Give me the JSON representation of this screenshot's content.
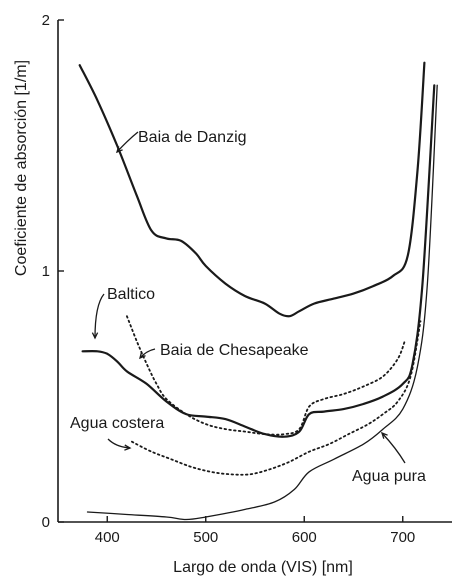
{
  "chart_data": {
    "type": "line",
    "xlabel": "Largo de onda (VIS) [nm]",
    "ylabel": "Coeficiente de absorción [1/m]",
    "xlim": [
      350,
      750
    ],
    "ylim": [
      0,
      2
    ],
    "x_ticks": [
      {
        "value": 400,
        "label": "400"
      },
      {
        "value": 500,
        "label": "500"
      },
      {
        "value": 600,
        "label": "600"
      },
      {
        "value": 700,
        "label": "700"
      }
    ],
    "y_ticks": [
      {
        "value": 0,
        "label": "0"
      },
      {
        "value": 1,
        "label": "1"
      },
      {
        "value": 2,
        "label": "2"
      }
    ],
    "grid": false,
    "series": [
      {
        "name": "Baia de Danzig",
        "style": "solid",
        "x": [
          372,
          390,
          410,
          430,
          445,
          460,
          475,
          490,
          500,
          520,
          540,
          560,
          575,
          585,
          595,
          610,
          630,
          650,
          670,
          690,
          705,
          715,
          722
        ],
        "y": [
          1.82,
          1.68,
          1.5,
          1.3,
          1.16,
          1.13,
          1.12,
          1.07,
          1.02,
          0.95,
          0.9,
          0.87,
          0.83,
          0.82,
          0.84,
          0.87,
          0.89,
          0.91,
          0.94,
          0.98,
          1.06,
          1.4,
          1.83
        ]
      },
      {
        "name": "Baltico",
        "style": "solid",
        "x": [
          375,
          390,
          400,
          410,
          420,
          440,
          460,
          480,
          500,
          520,
          540,
          560,
          580,
          595,
          605,
          620,
          640,
          660,
          680,
          700,
          710,
          720,
          732
        ],
        "y": [
          0.68,
          0.68,
          0.67,
          0.64,
          0.6,
          0.55,
          0.48,
          0.43,
          0.42,
          0.41,
          0.38,
          0.35,
          0.34,
          0.36,
          0.43,
          0.44,
          0.45,
          0.47,
          0.5,
          0.55,
          0.63,
          0.95,
          1.74
        ]
      },
      {
        "name": "Baia de Chesapeake",
        "style": "dotted",
        "x": [
          420,
          430,
          440,
          450,
          460,
          480,
          500,
          520,
          540,
          560,
          580,
          595,
          605,
          620,
          640,
          660,
          680,
          695,
          702
        ],
        "y": [
          0.82,
          0.72,
          0.63,
          0.55,
          0.49,
          0.43,
          0.39,
          0.37,
          0.36,
          0.35,
          0.35,
          0.37,
          0.46,
          0.49,
          0.51,
          0.54,
          0.58,
          0.65,
          0.72
        ]
      },
      {
        "name": "Agua costera",
        "style": "dotted",
        "x": [
          425,
          445,
          465,
          485,
          505,
          525,
          545,
          565,
          585,
          605,
          625,
          645,
          665,
          680,
          695,
          708,
          718
        ],
        "y": [
          0.32,
          0.28,
          0.25,
          0.22,
          0.2,
          0.19,
          0.19,
          0.21,
          0.24,
          0.28,
          0.31,
          0.35,
          0.39,
          0.43,
          0.48,
          0.58,
          0.8
        ]
      },
      {
        "name": "Agua pura",
        "style": "solid",
        "x": [
          380,
          420,
          460,
          480,
          500,
          540,
          570,
          590,
          605,
          630,
          660,
          680,
          700,
          715,
          725,
          735
        ],
        "y": [
          0.04,
          0.03,
          0.02,
          0.01,
          0.02,
          0.05,
          0.08,
          0.13,
          0.2,
          0.25,
          0.31,
          0.37,
          0.45,
          0.62,
          0.95,
          1.74
        ]
      }
    ],
    "annotations": [
      {
        "series": "Baia de Danzig",
        "text": "Baia de Danzig"
      },
      {
        "series": "Baltico",
        "text": "Baltico"
      },
      {
        "series": "Baia de Chesapeake",
        "text": "Baia de Chesapeake"
      },
      {
        "series": "Agua costera",
        "text": "Agua costera"
      },
      {
        "series": "Agua pura",
        "text": "Agua pura"
      }
    ]
  }
}
